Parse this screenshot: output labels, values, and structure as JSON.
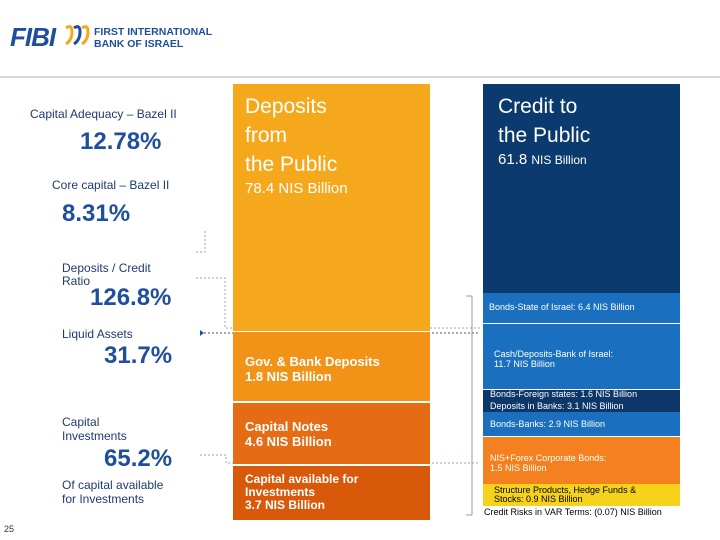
{
  "header": {
    "logo_text": "FIBI",
    "bank_name_line1": "FIRST INTERNATIONAL",
    "bank_name_line2": "BANK OF ISRAEL"
  },
  "metrics": {
    "capital_adequacy_label": "Capital Adequacy – Bazel II",
    "capital_adequacy_value": "12.78%",
    "core_capital_label": "Core capital – Bazel II",
    "core_capital_value": "8.31%",
    "deposits_credit_ratio_label_line1": "Deposits / Credit",
    "deposits_credit_ratio_label_line2": "Ratio",
    "deposits_credit_ratio_value": "126.8%",
    "liquid_assets_label": "Liquid Assets",
    "liquid_assets_value": "31.7%",
    "capital_investments_label_line1": "Capital",
    "capital_investments_label_line2": "Investments",
    "capital_investments_value": "65.2%",
    "capital_available_label_line1": "Of capital available",
    "capital_available_label_line2": "for Investments"
  },
  "deposits": {
    "title_line1": "Deposits",
    "title_line2": "from",
    "title_line3": "the Public",
    "amount": "78.4 NIS Billion",
    "gov_bank_line1": "Gov. & Bank Deposits",
    "gov_bank_line2": "1.8 NIS Billion",
    "capital_notes_line1": "Capital Notes",
    "capital_notes_line2": "4.6 NIS Billion",
    "capital_avail_line1": "Capital available for",
    "capital_avail_line2": "Investments",
    "capital_avail_line3": "3.7 NIS Billion"
  },
  "credit": {
    "title_line1": "Credit to",
    "title_line2": "the Public",
    "amount_value": "61.8",
    "amount_unit": "NIS Billion",
    "bonds_state": "Bonds-State of Israel: 6.4 NIS Billion",
    "cash_line1": "Cash/Deposits-Bank of Israel:",
    "cash_line2": "11.7 NIS Billion",
    "bonds_foreign": "Bonds-Foreign states: 1.6 NIS Billion",
    "deposits_in_banks": "Deposits in Banks: 3.1 NIS Billion",
    "bonds_banks": "Bonds-Banks: 2.9 NIS Billion",
    "nis_forex_line1": "NIS+Forex Corporate Bonds:",
    "nis_forex_line2": "1.5 NIS Billion",
    "structure_line1": "Structure Products, Hedge Funds &",
    "structure_line2": "Stocks: 0.9 NIS Billion",
    "var_text": "Credit Risks in VAR Terms: (0.07) NIS Billion"
  },
  "page_number": "25",
  "colors": {
    "brand_blue": "#1f4f9c",
    "deposit_orange": "#f5a81c",
    "credit_navy": "#0b3a6f",
    "credit_blue": "#1a6fbf"
  }
}
